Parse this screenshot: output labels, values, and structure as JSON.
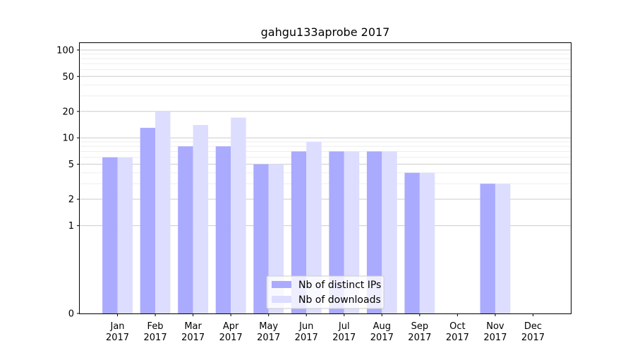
{
  "chart_data": {
    "type": "bar",
    "title": "gahgu133aprobe 2017",
    "xlabel": "",
    "ylabel": "",
    "yscale": "symlog",
    "ylim": [
      0,
      120
    ],
    "yticks": [
      0,
      1,
      2,
      5,
      10,
      20,
      50,
      100
    ],
    "grid": true,
    "legend_position": "bottom-center",
    "categories": [
      [
        "Jan",
        "2017"
      ],
      [
        "Feb",
        "2017"
      ],
      [
        "Mar",
        "2017"
      ],
      [
        "Apr",
        "2017"
      ],
      [
        "May",
        "2017"
      ],
      [
        "Jun",
        "2017"
      ],
      [
        "Jul",
        "2017"
      ],
      [
        "Aug",
        "2017"
      ],
      [
        "Sep",
        "2017"
      ],
      [
        "Oct",
        "2017"
      ],
      [
        "Nov",
        "2017"
      ],
      [
        "Dec",
        "2017"
      ]
    ],
    "series": [
      {
        "name": "Nb of distinct IPs",
        "color": "#aaaaff",
        "values": [
          6,
          13,
          8,
          8,
          5,
          7,
          7,
          7,
          4,
          0,
          3,
          0
        ]
      },
      {
        "name": "Nb of downloads",
        "color": "#ddddff",
        "values": [
          6,
          20,
          14,
          17,
          5,
          9,
          7,
          7,
          4,
          0,
          3,
          0
        ]
      }
    ]
  }
}
